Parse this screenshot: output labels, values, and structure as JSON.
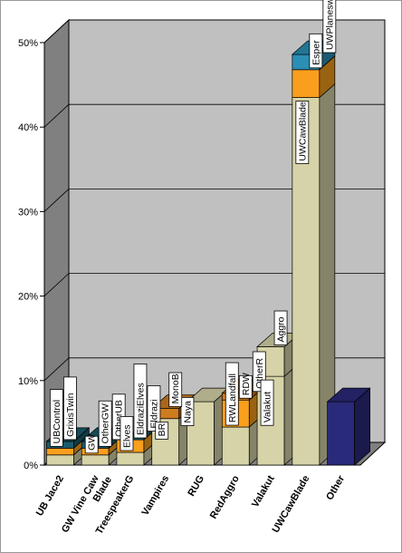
{
  "chart_data": {
    "type": "bar",
    "subtype": "stacked-3d",
    "title": "",
    "xlabel": "",
    "ylabel": "",
    "ylim": [
      0,
      50
    ],
    "y_ticks": [
      {
        "value": 0,
        "label": "0%"
      },
      {
        "value": 10,
        "label": "10%"
      },
      {
        "value": 20,
        "label": "20%"
      },
      {
        "value": 30,
        "label": "30%"
      },
      {
        "value": 40,
        "label": "40%"
      },
      {
        "value": 50,
        "label": "50%"
      }
    ],
    "grid": true,
    "legend": "none",
    "categories": [
      {
        "label": "UB Jace2",
        "segments": [
          {
            "value": 1.2,
            "color": "#d6d3a8",
            "label": ""
          },
          {
            "value": 0.8,
            "color": "#f99f1d",
            "label": "UBControl"
          },
          {
            "value": 0.8,
            "color": "#1a5c6e",
            "label": "GrixisTwin"
          }
        ]
      },
      {
        "label": "GW Vine Caw Blade",
        "segments": [
          {
            "value": 1.2,
            "color": "#d6d3a8",
            "label": "GW"
          },
          {
            "value": 0.8,
            "color": "#f99f1d",
            "label": "OtherGW"
          },
          {
            "value": 0.8,
            "color": "#1a5c6e",
            "label": "OtherUB"
          }
        ]
      },
      {
        "label": "TreespeakerG",
        "segments": [
          {
            "value": 1.5,
            "color": "#d6d3a8",
            "label": "Elves"
          },
          {
            "value": 1.5,
            "color": "#f99f1d",
            "label": "EldraziElves"
          },
          {
            "value": 0.8,
            "color": "#1a5c6e",
            "label": "Eldrazi"
          },
          {
            "value": 0.0,
            "color": "#cf7c1f",
            "label": "Naya"
          }
        ]
      },
      {
        "label": "Vampires",
        "segments": [
          {
            "value": 5.5,
            "color": "#d6d3a8",
            "label": "BR"
          },
          {
            "value": 1.2,
            "color": "#cf7c1f",
            "label": "MonoB"
          }
        ]
      },
      {
        "label": "RUG",
        "segments": [
          {
            "value": 7.5,
            "color": "#d6d3a8",
            "label": ""
          }
        ]
      },
      {
        "label": "RedAggro",
        "segments": [
          {
            "value": 4.5,
            "color": "#d6d3a8",
            "label": "RWLandfall"
          },
          {
            "value": 3.2,
            "color": "#f99f1d",
            "label": "RDW"
          },
          {
            "value": 0.8,
            "color": "#cf7c1f",
            "label": "OtherR"
          }
        ]
      },
      {
        "label": "Valakut",
        "segments": [
          {
            "value": 10.5,
            "color": "#d6d3a8",
            "label": "Valakut"
          },
          {
            "value": 3.5,
            "color": "#d6d3a8",
            "label": "Aggro"
          }
        ]
      },
      {
        "label": "UWCawBlade",
        "segments": [
          {
            "value": 43.5,
            "color": "#d6d3a8",
            "label": "UWCawBlade"
          },
          {
            "value": 3.3,
            "color": "#f99f1d",
            "label": "Esper"
          },
          {
            "value": 1.8,
            "color": "#2b8fb5",
            "label": "UWPlaneswalkers"
          }
        ]
      },
      {
        "label": "Other",
        "segments": [
          {
            "value": 7.5,
            "color": "#2a2a7a",
            "label": ""
          }
        ]
      }
    ]
  }
}
